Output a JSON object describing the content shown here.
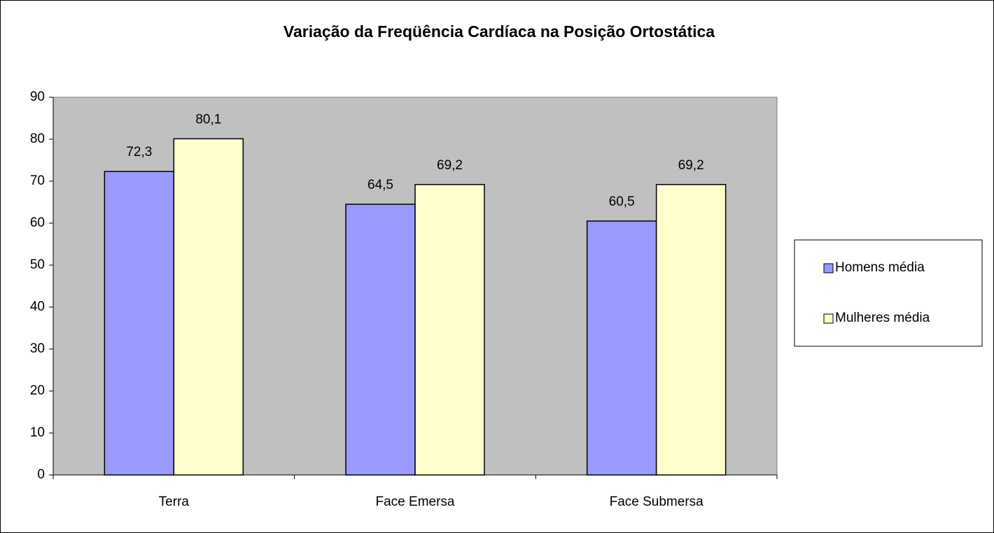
{
  "chart_data": {
    "type": "bar",
    "title": "Variação da Freqüência Cardíaca na Posição Ortostática",
    "categories": [
      "Terra",
      "Face Emersa",
      "Face Submersa"
    ],
    "series": [
      {
        "name": "Homens média",
        "color": "#9999ff",
        "values": [
          72.3,
          64.5,
          60.5
        ],
        "value_labels": [
          "72,3",
          "64,5",
          "60,5"
        ]
      },
      {
        "name": "Mulheres média",
        "color": "#ffffcc",
        "values": [
          80.1,
          69.2,
          69.2
        ],
        "value_labels": [
          "80,1",
          "69,2",
          "69,2"
        ]
      }
    ],
    "ylim": [
      0,
      90
    ],
    "yticks": [
      0,
      10,
      20,
      30,
      40,
      50,
      60,
      70,
      80,
      90
    ],
    "legend": "right",
    "plot_background": "#c0c0c0"
  }
}
